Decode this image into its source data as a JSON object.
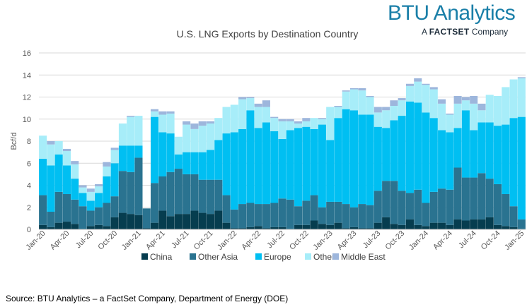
{
  "brand": {
    "logo_text": "BTU Analytics",
    "tagline_prefix": "A",
    "tagline_brand": "FACTSET",
    "tagline_suffix": "Company"
  },
  "source": "Source: BTU Analytics – a FactSet Company, Department of Energy (DOE)",
  "colors": {
    "China": "#063d4f",
    "Other Asia": "#2a7390",
    "Europe": "#00bff2",
    "Other": "#a7edf9",
    "Middle East": "#9db6dc",
    "grid": "#d9d9d9",
    "axis_text": "#595959"
  },
  "chart_data": {
    "type": "bar",
    "stacked": true,
    "title": "U.S. LNG Exports by Destination Country",
    "xlabel": "",
    "ylabel": "Bcf/d",
    "ylim": [
      0,
      16
    ],
    "yticks": [
      0,
      2,
      4,
      6,
      8,
      10,
      12,
      14,
      16
    ],
    "grid": true,
    "legend_position": "bottom",
    "categories": [
      "Jan-20",
      "Feb-20",
      "Mar-20",
      "Apr-20",
      "May-20",
      "Jun-20",
      "Jul-20",
      "Aug-20",
      "Sep-20",
      "Oct-20",
      "Nov-20",
      "Dec-20",
      "Jan-21",
      "Feb-21",
      "Mar-21",
      "Apr-21",
      "May-21",
      "Jun-21",
      "Jul-21",
      "Aug-21",
      "Sep-21",
      "Oct-21",
      "Nov-21",
      "Dec-21",
      "Jan-22",
      "Feb-22",
      "Mar-22",
      "Apr-22",
      "May-22",
      "Jun-22",
      "Jul-22",
      "Aug-22",
      "Sep-22",
      "Oct-22",
      "Nov-22",
      "Dec-22",
      "Jan-23",
      "Feb-23",
      "Mar-23",
      "Apr-23",
      "May-23",
      "Jun-23",
      "Jul-23",
      "Aug-23",
      "Sep-23",
      "Oct-23",
      "Nov-23",
      "Dec-23",
      "Jan-24",
      "Feb-24",
      "Mar-24",
      "Apr-24",
      "May-24",
      "Jun-24",
      "Jul-24",
      "Aug-24",
      "Sep-24",
      "Oct-24",
      "Nov-24",
      "Dec-24",
      "Jan-25"
    ],
    "tick_labels": [
      "Jan-20",
      "Apr-20",
      "Jul-20",
      "Oct-20",
      "Jan-21",
      "Apr-21",
      "Jul-21",
      "Oct-21",
      "Jan-22",
      "Apr-22",
      "Jul-22",
      "Oct-22",
      "Jan-23",
      "Apr-23",
      "Jul-23",
      "Oct-23",
      "Jan-24",
      "Apr-24",
      "Jul-24",
      "Oct-24",
      "Jan-25"
    ],
    "series": [
      {
        "name": "China",
        "values": [
          0.4,
          0.2,
          0.6,
          0.7,
          0.5,
          0.0,
          0.3,
          0.4,
          0.3,
          1.1,
          1.5,
          1.4,
          1.3,
          0.1,
          0.6,
          1.7,
          1.2,
          1.4,
          1.4,
          1.7,
          1.5,
          1.4,
          1.7,
          0.6,
          0.1,
          0.1,
          0.2,
          0.3,
          0.1,
          0.2,
          0.2,
          0.0,
          0.4,
          0.4,
          0.8,
          0.5,
          0.4,
          0.6,
          0.1,
          0.2,
          0.1,
          0.1,
          0.6,
          1.1,
          0.5,
          0.4,
          0.9,
          0.4,
          0.3,
          0.6,
          0.6,
          0.4,
          0.9,
          0.8,
          0.9,
          0.9,
          1.1,
          0.4,
          0.3,
          0.2,
          0.0
        ]
      },
      {
        "name": "Other Asia",
        "values": [
          2.7,
          1.4,
          2.8,
          2.5,
          2.2,
          2.1,
          1.4,
          1.6,
          2.1,
          1.9,
          3.8,
          3.8,
          5.2,
          1.8,
          3.6,
          3.1,
          4.0,
          4.1,
          3.6,
          3.3,
          3.0,
          3.1,
          2.8,
          2.5,
          1.7,
          2.2,
          2.2,
          2.0,
          2.2,
          2.2,
          2.6,
          2.7,
          1.7,
          2.2,
          2.3,
          1.5,
          2.1,
          1.9,
          2.2,
          1.8,
          2.2,
          2.1,
          2.9,
          3.3,
          3.9,
          3.1,
          2.4,
          3.2,
          2.1,
          2.8,
          3.1,
          3.2,
          4.7,
          3.9,
          3.8,
          4.2,
          3.5,
          3.7,
          2.9,
          1.9,
          0.9
        ]
      },
      {
        "name": "Europe",
        "values": [
          3.3,
          4.2,
          3.4,
          2.6,
          1.9,
          1.2,
          0.9,
          1.3,
          2.4,
          3.0,
          2.3,
          2.4,
          1.1,
          0.0,
          6.0,
          4.0,
          3.5,
          1.3,
          2.0,
          2.0,
          2.5,
          2.7,
          3.6,
          5.6,
          7.0,
          6.8,
          8.4,
          6.9,
          7.4,
          6.5,
          5.4,
          6.3,
          7.1,
          6.7,
          6.0,
          7.5,
          5.6,
          7.6,
          8.6,
          8.8,
          8.1,
          8.2,
          5.8,
          4.8,
          5.5,
          6.8,
          8.3,
          7.9,
          8.2,
          6.7,
          5.3,
          5.2,
          3.6,
          6.1,
          4.3,
          4.6,
          5.1,
          5.3,
          6.3,
          8.0,
          9.3
        ]
      },
      {
        "name": "Other",
        "values": [
          2.1,
          1.9,
          1.2,
          1.3,
          1.3,
          0.5,
          0.8,
          0.6,
          0.9,
          1.2,
          2.0,
          2.6,
          2.7,
          0.0,
          0.5,
          1.6,
          1.8,
          1.6,
          2.5,
          2.1,
          2.4,
          2.4,
          2.0,
          2.4,
          2.5,
          2.7,
          1.1,
          1.9,
          1.4,
          1.2,
          1.6,
          0.8,
          0.4,
          0.5,
          1.0,
          0.5,
          3.0,
          1.0,
          1.6,
          1.9,
          2.2,
          1.6,
          1.3,
          1.6,
          1.3,
          1.4,
          1.4,
          1.9,
          2.5,
          2.6,
          2.4,
          1.6,
          2.2,
          0.9,
          2.4,
          1.1,
          2.5,
          2.7,
          3.4,
          3.5,
          3.5
        ]
      },
      {
        "name": "Middle East",
        "values": [
          0.0,
          0.3,
          0.0,
          0.2,
          0.3,
          0.2,
          0.3,
          0.2,
          0.4,
          0.2,
          0.0,
          0.1,
          0.0,
          0.0,
          0.2,
          0.3,
          0.2,
          0.0,
          0.3,
          0.5,
          0.4,
          0.2,
          0.0,
          0.0,
          0.0,
          0.2,
          0.1,
          0.3,
          0.6,
          0.1,
          0.2,
          0.2,
          0.2,
          0.3,
          0.0,
          0.1,
          0.0,
          0.1,
          0.1,
          0.1,
          0.2,
          0.1,
          0.5,
          0.3,
          0.5,
          0.2,
          0.2,
          0.3,
          0.1,
          0.2,
          0.4,
          0.1,
          0.7,
          0.3,
          0.7,
          0.6,
          0.0,
          0.0,
          0.0,
          0.0,
          0.1
        ]
      }
    ]
  }
}
